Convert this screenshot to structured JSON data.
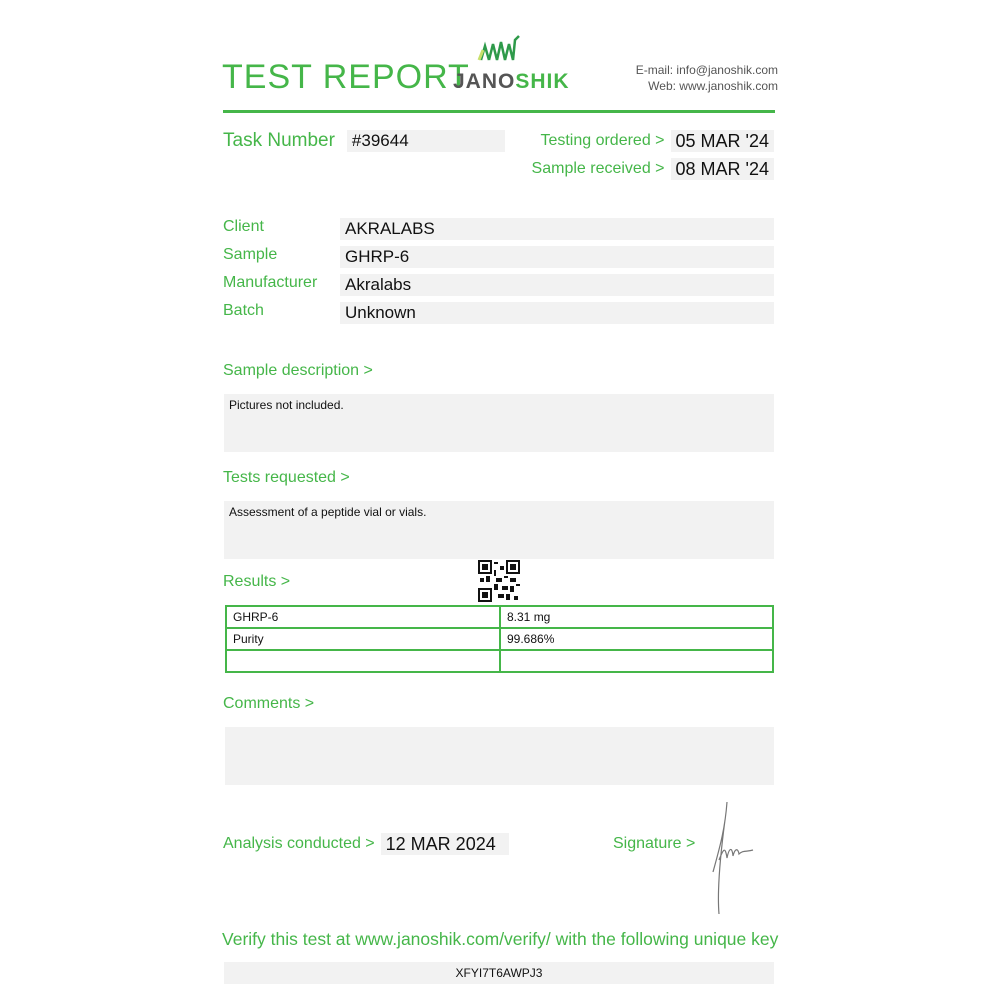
{
  "header": {
    "title": "TEST REPORT",
    "logo_text_dark": "JANO",
    "logo_text_green": "SHIK",
    "email": "E-mail: info@janoshik.com",
    "web": "Web: www.janoshik.com"
  },
  "task": {
    "label": "Task Number",
    "value": "#39644"
  },
  "dates": {
    "ordered_label": "Testing ordered  >",
    "ordered": "05 MAR '24",
    "received_label": "Sample received >",
    "received": "08 MAR '24"
  },
  "fields": [
    {
      "label": "Client",
      "value": "AKRALABS"
    },
    {
      "label": "Sample",
      "value": "GHRP-6"
    },
    {
      "label": "Manufacturer",
      "value": "Akralabs"
    },
    {
      "label": "Batch",
      "value": "Unknown"
    }
  ],
  "sample_description": {
    "label": "Sample description >",
    "text": "Pictures not included."
  },
  "tests_requested": {
    "label": "Tests requested >",
    "text": "Assessment of a peptide vial or vials."
  },
  "results": {
    "label": "Results >",
    "rows": [
      [
        "GHRP-6",
        "8.31 mg"
      ],
      [
        "Purity",
        "99.686%"
      ],
      [
        "",
        ""
      ]
    ]
  },
  "comments": {
    "label": "Comments >",
    "text": ""
  },
  "analysis": {
    "label": "Analysis conducted >",
    "value": "12 MAR 2024"
  },
  "signature": {
    "label": "Signature >"
  },
  "verify": {
    "text": "Verify this test at www.janoshik.com/verify/ with the following unique key",
    "key": "XFYI7T6AWPJ3"
  },
  "colors": {
    "accent": "#45b649",
    "field_bg": "#f2f2f2"
  }
}
